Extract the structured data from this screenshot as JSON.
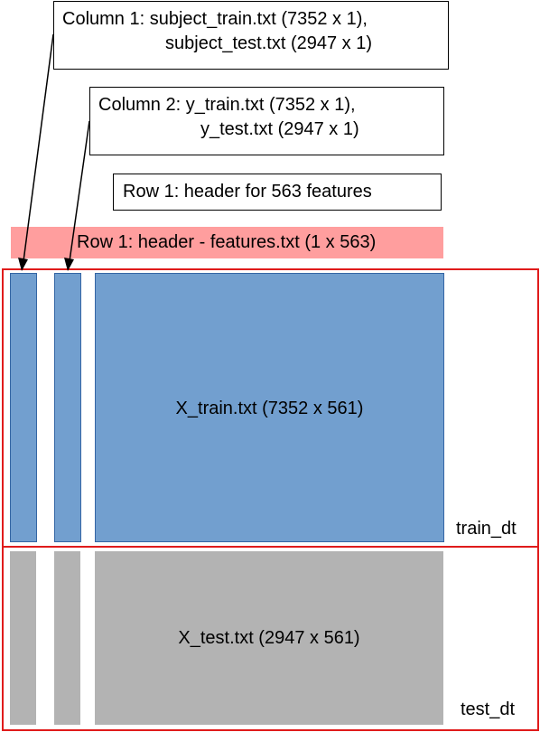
{
  "callouts": {
    "column1": {
      "line1": "Column 1: subject_train.txt (7352 x 1),",
      "line2": "subject_test.txt (2947 x 1)"
    },
    "column2": {
      "line1": "Column 2: y_train.txt (7352 x 1),",
      "line2": "y_test.txt (2947 x 1)"
    },
    "row1_header": "Row 1: header for 563 features"
  },
  "header_bar": {
    "label": "Row 1: header - features.txt (1 x 563)",
    "color": "#ff9e9e"
  },
  "train": {
    "block_label": "X_train.txt (7352 x 561)",
    "region_label": "train_dt",
    "color": "#729fcf"
  },
  "test": {
    "block_label": "X_test.txt (2947 x 561)",
    "region_label": "test_dt",
    "color": "#b3b3b3"
  },
  "region_border_color": "#e01b1b"
}
